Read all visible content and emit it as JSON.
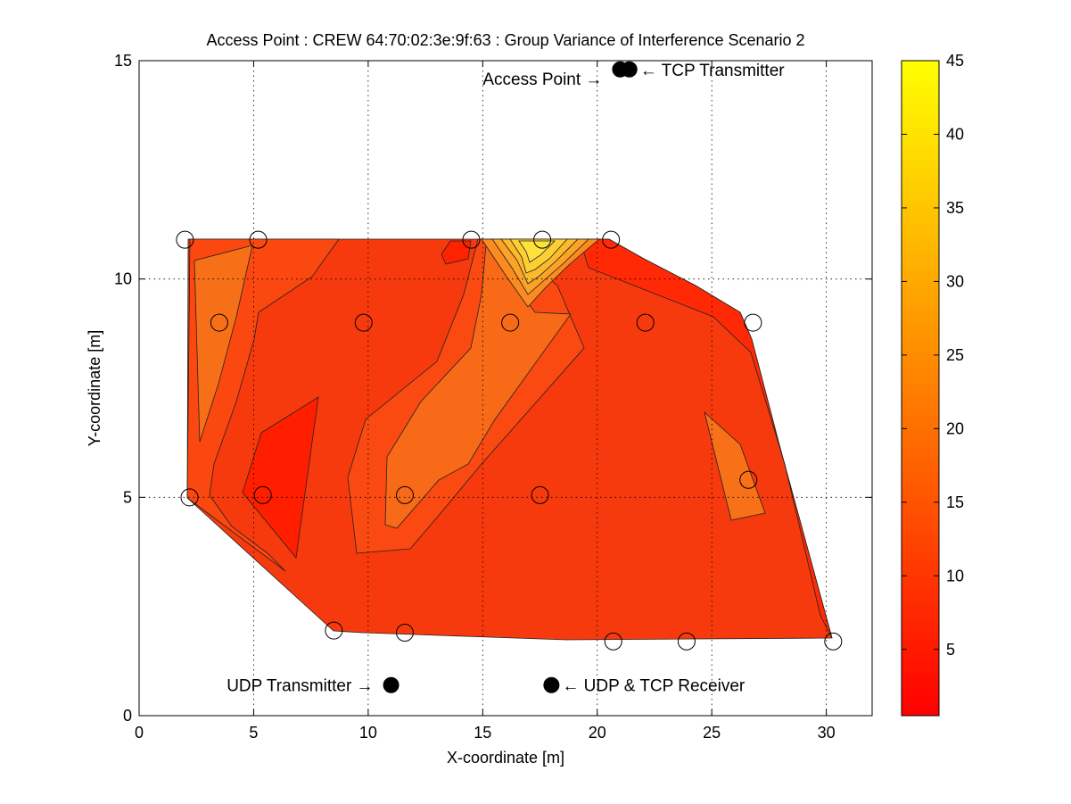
{
  "chart_data": {
    "type": "heatmap",
    "title": "Access Point : CREW 64:70:02:3e:9f:63 : Group Variance of Interference Scenario 2",
    "xlabel": "X-coordinate [m]",
    "ylabel": "Y-coordinate [m]",
    "xlim": [
      0,
      32
    ],
    "ylim": [
      0,
      15
    ],
    "xticks": [
      0,
      5,
      10,
      15,
      20,
      25,
      30
    ],
    "yticks": [
      0,
      5,
      10,
      15
    ],
    "grid": true,
    "colormap": "autumn",
    "colorbar": {
      "min": 0.5,
      "max": 45,
      "ticks": [
        5,
        10,
        15,
        20,
        25,
        30,
        35,
        40,
        45
      ],
      "color_low": "#ff0000",
      "color_high": "#ffff00"
    },
    "measurement_points": [
      {
        "x": 2.0,
        "y": 10.9,
        "value": 6
      },
      {
        "x": 5.2,
        "y": 10.9,
        "value": 10
      },
      {
        "x": 14.5,
        "y": 10.9,
        "value": 10
      },
      {
        "x": 17.6,
        "y": 10.9,
        "value": 38
      },
      {
        "x": 20.6,
        "y": 10.9,
        "value": 6
      },
      {
        "x": 3.5,
        "y": 9.0,
        "value": 16
      },
      {
        "x": 9.8,
        "y": 9.0,
        "value": 8
      },
      {
        "x": 16.2,
        "y": 9.0,
        "value": 16
      },
      {
        "x": 22.1,
        "y": 9.0,
        "value": 12
      },
      {
        "x": 26.8,
        "y": 9.0,
        "value": 3
      },
      {
        "x": 2.2,
        "y": 5.0,
        "value": 8
      },
      {
        "x": 5.4,
        "y": 5.05,
        "value": 3
      },
      {
        "x": 11.6,
        "y": 5.05,
        "value": 16
      },
      {
        "x": 17.5,
        "y": 5.05,
        "value": 8
      },
      {
        "x": 26.6,
        "y": 5.4,
        "value": 16
      },
      {
        "x": 8.5,
        "y": 1.95,
        "value": 8
      },
      {
        "x": 11.6,
        "y": 1.9,
        "value": 8
      },
      {
        "x": 20.7,
        "y": 1.7,
        "value": 6
      },
      {
        "x": 23.9,
        "y": 1.7,
        "value": 6
      },
      {
        "x": 30.3,
        "y": 1.7,
        "value": 4
      }
    ],
    "devices": [
      {
        "label": "Access Point →",
        "x": 21.0,
        "y": 14.8,
        "label_side": "left"
      },
      {
        "label": "← TCP Transmitter",
        "x": 21.4,
        "y": 14.8,
        "label_side": "right"
      },
      {
        "label": "UDP Transmitter →",
        "x": 11.0,
        "y": 0.7,
        "label_side": "left"
      },
      {
        "label": "← UDP & TCP Receiver",
        "x": 18.0,
        "y": 0.7,
        "label_side": "right"
      }
    ]
  }
}
